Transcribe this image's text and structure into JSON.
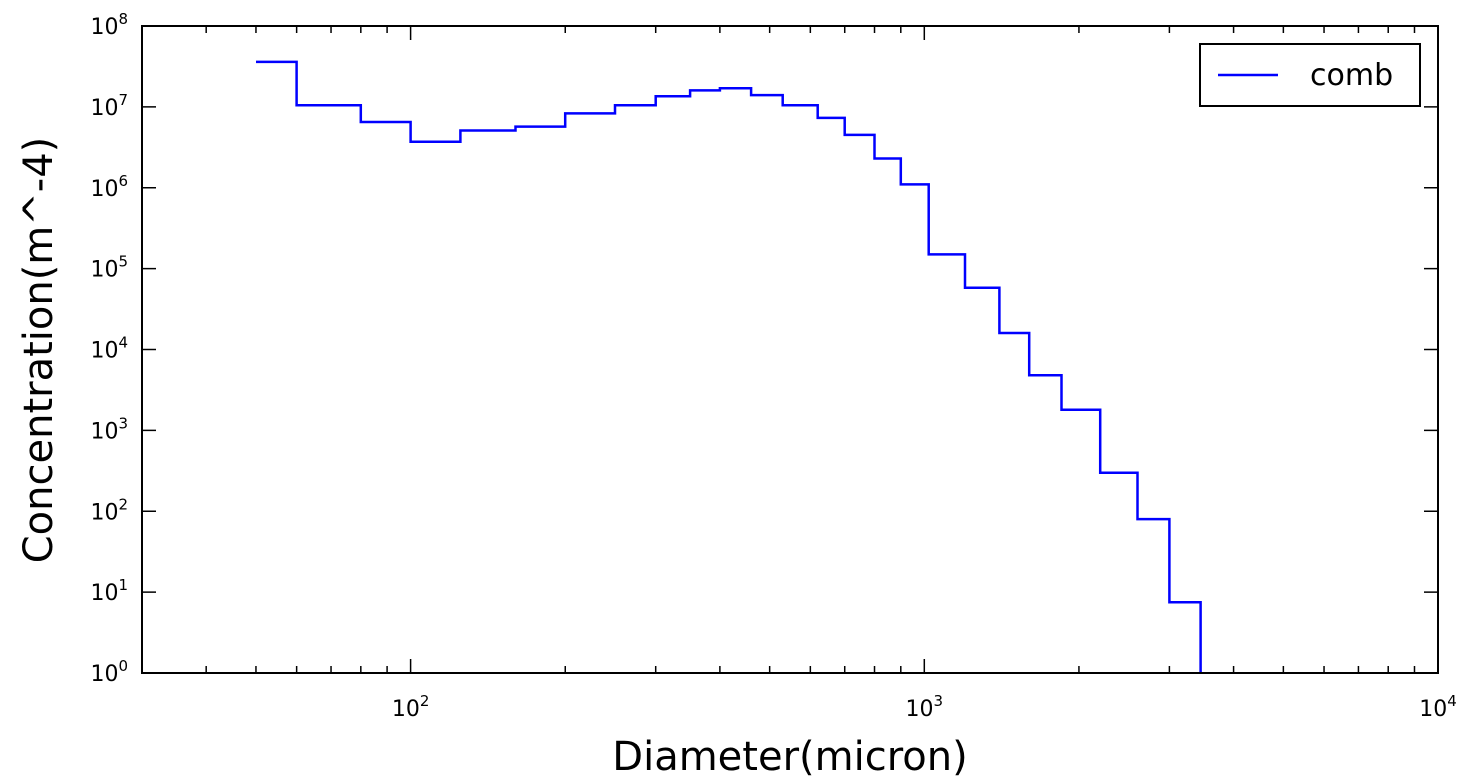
{
  "chart_data": {
    "type": "line",
    "style": "step",
    "title": "",
    "xlabel": "Diameter(micron)",
    "ylabel": "Concentration(m^-4)",
    "x_scale": "log",
    "y_scale": "log",
    "xlim": [
      30,
      10000
    ],
    "ylim": [
      1,
      100000000
    ],
    "grid": false,
    "legend_position": "top-right",
    "x_ticks": [
      {
        "value": 100,
        "base": "10",
        "exp": "2"
      },
      {
        "value": 1000,
        "base": "10",
        "exp": "3"
      },
      {
        "value": 10000,
        "base": "10",
        "exp": "4"
      }
    ],
    "y_ticks": [
      {
        "value": 1,
        "base": "10",
        "exp": "0"
      },
      {
        "value": 10,
        "base": "10",
        "exp": "1"
      },
      {
        "value": 100,
        "base": "10",
        "exp": "2"
      },
      {
        "value": 1000,
        "base": "10",
        "exp": "3"
      },
      {
        "value": 10000,
        "base": "10",
        "exp": "4"
      },
      {
        "value": 100000,
        "base": "10",
        "exp": "5"
      },
      {
        "value": 1000000,
        "base": "10",
        "exp": "6"
      },
      {
        "value": 10000000,
        "base": "10",
        "exp": "7"
      },
      {
        "value": 100000000,
        "base": "10",
        "exp": "8"
      }
    ],
    "series": [
      {
        "name": "comb",
        "color": "#0000ff",
        "bin_edges": [
          50,
          60,
          80,
          100,
          125,
          160,
          200,
          250,
          300,
          350,
          400,
          460,
          530,
          620,
          700,
          800,
          900,
          1020,
          1200,
          1400,
          1600,
          1850,
          2200,
          2600,
          3000,
          3450
        ],
        "values": [
          36000000,
          10500000,
          6500000,
          3700000,
          5100000,
          5700000,
          8300000,
          10500000,
          13500000,
          16000000,
          17000000,
          14000000,
          10500000,
          7300000,
          4500000,
          2300000,
          1100000,
          150000,
          58000,
          16000,
          4800,
          1800,
          300,
          80,
          7.5
        ]
      }
    ]
  }
}
